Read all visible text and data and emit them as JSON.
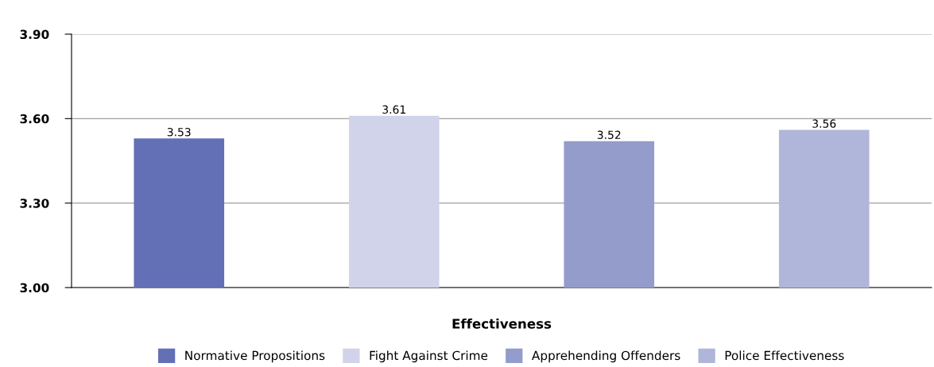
{
  "chart_data": {
    "type": "bar",
    "categories": [
      "Effectiveness"
    ],
    "series": [
      {
        "name": "Normative Propositions",
        "color": "#6370b5",
        "values": [
          3.53
        ]
      },
      {
        "name": "Fight Against Crime",
        "color": "#d0d3e9",
        "values": [
          3.61
        ]
      },
      {
        "name": "Apprehending Offenders",
        "color": "#939cca",
        "values": [
          3.52
        ]
      },
      {
        "name": "Police Effectiveness",
        "color": "#b0b6da",
        "values": [
          3.56
        ]
      }
    ],
    "ylim": [
      3.0,
      3.9
    ],
    "yticks": [
      {
        "value": 3.0,
        "label": "3.00"
      },
      {
        "value": 3.3,
        "label": "3.30"
      },
      {
        "value": 3.6,
        "label": "3.60"
      },
      {
        "value": 3.9,
        "label": "3.90"
      }
    ],
    "grid": "y",
    "legend": "bottom",
    "data_labels": true
  }
}
